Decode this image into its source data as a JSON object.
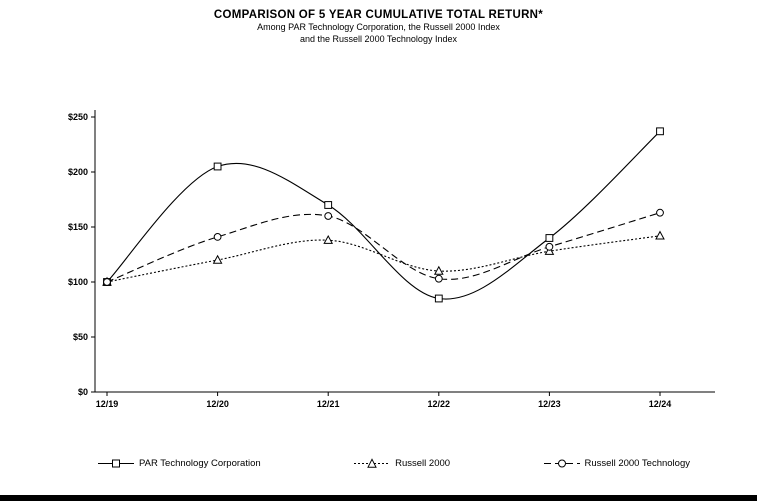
{
  "chart_data": {
    "type": "line",
    "title": "COMPARISON OF 5 YEAR CUMULATIVE TOTAL RETURN*",
    "subtitle_line1": "Among PAR Technology Corporation, the Russell 2000 Index",
    "subtitle_line2": "and the Russell 2000 Technology Index",
    "categories": [
      "12/19",
      "12/20",
      "12/21",
      "12/22",
      "12/23",
      "12/24"
    ],
    "series": [
      {
        "name": "PAR Technology Corporation",
        "values": [
          100,
          205,
          170,
          85,
          140,
          237
        ],
        "marker": "square",
        "line_style": "solid"
      },
      {
        "name": "Russell 2000",
        "values": [
          100,
          120,
          138,
          110,
          128,
          142
        ],
        "marker": "triangle",
        "line_style": "dotted"
      },
      {
        "name": "Russell 2000 Technology",
        "values": [
          100,
          141,
          160,
          103,
          132,
          163
        ],
        "marker": "circle",
        "line_style": "dashed"
      }
    ],
    "y_ticks": [
      {
        "label": "$0",
        "value": 0
      },
      {
        "label": "$50",
        "value": 50
      },
      {
        "label": "$100",
        "value": 100
      },
      {
        "label": "$150",
        "value": 150
      },
      {
        "label": "$200",
        "value": 200
      },
      {
        "label": "$250",
        "value": 250
      }
    ],
    "ylim": [
      0,
      250
    ],
    "xlabel": "",
    "ylabel": "",
    "grid": false,
    "smooth": true,
    "legend_position": "bottom",
    "line_color": "#000000",
    "marker_fill": "#ffffff"
  }
}
